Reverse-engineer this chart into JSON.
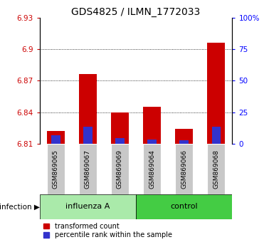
{
  "title": "GDS4825 / ILMN_1772033",
  "samples": [
    "GSM869065",
    "GSM869067",
    "GSM869069",
    "GSM869064",
    "GSM869066",
    "GSM869068"
  ],
  "group_labels": [
    "influenza A",
    "control"
  ],
  "group_light_color": "#AAEAAA",
  "group_dark_color": "#44CC44",
  "sample_bg_color": "#C8C8C8",
  "ylim_low": 6.81,
  "ylim_high": 6.93,
  "yticks": [
    6.81,
    6.84,
    6.87,
    6.9,
    6.93
  ],
  "ytick_labels": [
    "6.81",
    "6.84",
    "6.87",
    "6.9",
    "6.93"
  ],
  "y2ticks": [
    0,
    25,
    50,
    75,
    100
  ],
  "y2tick_labels": [
    "0",
    "25",
    "50",
    "75",
    "100%"
  ],
  "y2lim_low": 0,
  "y2lim_high": 100,
  "red_values": [
    6.822,
    6.876,
    6.84,
    6.845,
    6.824,
    6.906
  ],
  "blue_values": [
    6.818,
    6.826,
    6.815,
    6.814,
    6.813,
    6.826
  ],
  "bar_base": 6.81,
  "bar_width": 0.55,
  "blue_bar_width": 0.28,
  "red_color": "#CC0000",
  "blue_color": "#3333CC",
  "infection_label": "infection",
  "legend_red": "transformed count",
  "legend_blue": "percentile rank within the sample",
  "title_fontsize": 10,
  "tick_fontsize": 7.5,
  "sample_fontsize": 6.5,
  "group_fontsize": 8,
  "legend_fontsize": 7,
  "dotted_yvals": [
    6.84,
    6.87,
    6.9
  ]
}
